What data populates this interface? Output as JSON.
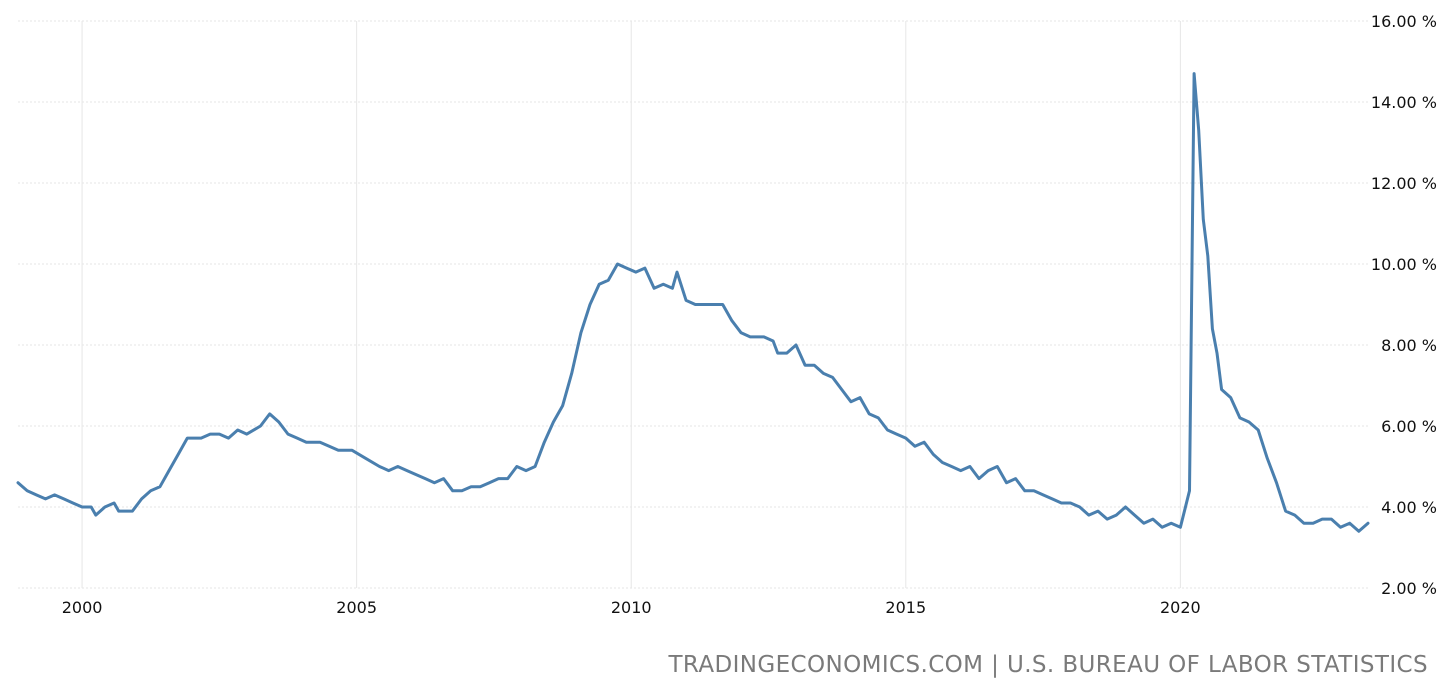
{
  "chart_data": {
    "type": "line",
    "title": "",
    "xlabel": "",
    "ylabel": "",
    "ylim": [
      2,
      16
    ],
    "xlim": [
      "1998-11",
      "2023-06"
    ],
    "grid": true,
    "legend": "none",
    "x_tick_labels": [
      "2000",
      "2005",
      "2010",
      "2015",
      "2020"
    ],
    "y_tick_labels": [
      "2.00 %",
      "4.00 %",
      "6.00 %",
      "8.00 %",
      "10.00 %",
      "12.00 %",
      "14.00 %",
      "16.00 %"
    ],
    "line_color": "#4a7fae",
    "series": [
      {
        "name": "",
        "points": [
          [
            "1998-11",
            4.6
          ],
          [
            "1999-01",
            4.4
          ],
          [
            "1999-03",
            4.3
          ],
          [
            "1999-05",
            4.2
          ],
          [
            "1999-07",
            4.3
          ],
          [
            "1999-09",
            4.2
          ],
          [
            "1999-11",
            4.1
          ],
          [
            "2000-01",
            4.0
          ],
          [
            "2000-03",
            4.0
          ],
          [
            "2000-04",
            3.8
          ],
          [
            "2000-06",
            4.0
          ],
          [
            "2000-08",
            4.1
          ],
          [
            "2000-09",
            3.9
          ],
          [
            "2000-12",
            3.9
          ],
          [
            "2001-02",
            4.2
          ],
          [
            "2001-04",
            4.4
          ],
          [
            "2001-06",
            4.5
          ],
          [
            "2001-08",
            4.9
          ],
          [
            "2001-10",
            5.3
          ],
          [
            "2001-12",
            5.7
          ],
          [
            "2002-03",
            5.7
          ],
          [
            "2002-05",
            5.8
          ],
          [
            "2002-07",
            5.8
          ],
          [
            "2002-09",
            5.7
          ],
          [
            "2002-11",
            5.9
          ],
          [
            "2003-01",
            5.8
          ],
          [
            "2003-04",
            6.0
          ],
          [
            "2003-06",
            6.3
          ],
          [
            "2003-08",
            6.1
          ],
          [
            "2003-10",
            5.8
          ],
          [
            "2003-12",
            5.7
          ],
          [
            "2004-02",
            5.6
          ],
          [
            "2004-05",
            5.6
          ],
          [
            "2004-07",
            5.5
          ],
          [
            "2004-09",
            5.4
          ],
          [
            "2004-12",
            5.4
          ],
          [
            "2005-03",
            5.2
          ],
          [
            "2005-06",
            5.0
          ],
          [
            "2005-08",
            4.9
          ],
          [
            "2005-10",
            5.0
          ],
          [
            "2005-12",
            4.9
          ],
          [
            "2006-02",
            4.8
          ],
          [
            "2006-04",
            4.7
          ],
          [
            "2006-06",
            4.6
          ],
          [
            "2006-08",
            4.7
          ],
          [
            "2006-10",
            4.4
          ],
          [
            "2006-12",
            4.4
          ],
          [
            "2007-02",
            4.5
          ],
          [
            "2007-04",
            4.5
          ],
          [
            "2007-06",
            4.6
          ],
          [
            "2007-08",
            4.7
          ],
          [
            "2007-10",
            4.7
          ],
          [
            "2007-12",
            5.0
          ],
          [
            "2008-02",
            4.9
          ],
          [
            "2008-04",
            5.0
          ],
          [
            "2008-06",
            5.6
          ],
          [
            "2008-08",
            6.1
          ],
          [
            "2008-10",
            6.5
          ],
          [
            "2008-12",
            7.3
          ],
          [
            "2009-02",
            8.3
          ],
          [
            "2009-04",
            9.0
          ],
          [
            "2009-06",
            9.5
          ],
          [
            "2009-08",
            9.6
          ],
          [
            "2009-10",
            10.0
          ],
          [
            "2009-12",
            9.9
          ],
          [
            "2010-02",
            9.8
          ],
          [
            "2010-04",
            9.9
          ],
          [
            "2010-06",
            9.4
          ],
          [
            "2010-08",
            9.5
          ],
          [
            "2010-10",
            9.4
          ],
          [
            "2010-11",
            9.8
          ],
          [
            "2011-01",
            9.1
          ],
          [
            "2011-03",
            9.0
          ],
          [
            "2011-05",
            9.0
          ],
          [
            "2011-07",
            9.0
          ],
          [
            "2011-09",
            9.0
          ],
          [
            "2011-11",
            8.6
          ],
          [
            "2012-01",
            8.3
          ],
          [
            "2012-03",
            8.2
          ],
          [
            "2012-06",
            8.2
          ],
          [
            "2012-08",
            8.1
          ],
          [
            "2012-09",
            7.8
          ],
          [
            "2012-11",
            7.8
          ],
          [
            "2013-01",
            8.0
          ],
          [
            "2013-03",
            7.5
          ],
          [
            "2013-05",
            7.5
          ],
          [
            "2013-07",
            7.3
          ],
          [
            "2013-09",
            7.2
          ],
          [
            "2013-11",
            6.9
          ],
          [
            "2014-01",
            6.6
          ],
          [
            "2014-03",
            6.7
          ],
          [
            "2014-05",
            6.3
          ],
          [
            "2014-07",
            6.2
          ],
          [
            "2014-09",
            5.9
          ],
          [
            "2014-11",
            5.8
          ],
          [
            "2015-01",
            5.7
          ],
          [
            "2015-03",
            5.5
          ],
          [
            "2015-05",
            5.6
          ],
          [
            "2015-07",
            5.3
          ],
          [
            "2015-09",
            5.1
          ],
          [
            "2015-11",
            5.0
          ],
          [
            "2016-01",
            4.9
          ],
          [
            "2016-03",
            5.0
          ],
          [
            "2016-05",
            4.7
          ],
          [
            "2016-07",
            4.9
          ],
          [
            "2016-09",
            5.0
          ],
          [
            "2016-11",
            4.6
          ],
          [
            "2017-01",
            4.7
          ],
          [
            "2017-03",
            4.4
          ],
          [
            "2017-05",
            4.4
          ],
          [
            "2017-07",
            4.3
          ],
          [
            "2017-09",
            4.2
          ],
          [
            "2017-11",
            4.1
          ],
          [
            "2018-01",
            4.1
          ],
          [
            "2018-03",
            4.0
          ],
          [
            "2018-05",
            3.8
          ],
          [
            "2018-07",
            3.9
          ],
          [
            "2018-09",
            3.7
          ],
          [
            "2018-11",
            3.8
          ],
          [
            "2019-01",
            4.0
          ],
          [
            "2019-03",
            3.8
          ],
          [
            "2019-05",
            3.6
          ],
          [
            "2019-07",
            3.7
          ],
          [
            "2019-09",
            3.5
          ],
          [
            "2019-11",
            3.6
          ],
          [
            "2020-01",
            3.5
          ],
          [
            "2020-03",
            4.4
          ],
          [
            "2020-04",
            14.7
          ],
          [
            "2020-05",
            13.3
          ],
          [
            "2020-06",
            11.1
          ],
          [
            "2020-07",
            10.2
          ],
          [
            "2020-08",
            8.4
          ],
          [
            "2020-09",
            7.8
          ],
          [
            "2020-10",
            6.9
          ],
          [
            "2020-12",
            6.7
          ],
          [
            "2021-02",
            6.2
          ],
          [
            "2021-04",
            6.1
          ],
          [
            "2021-06",
            5.9
          ],
          [
            "2021-08",
            5.2
          ],
          [
            "2021-10",
            4.6
          ],
          [
            "2021-12",
            3.9
          ],
          [
            "2022-02",
            3.8
          ],
          [
            "2022-04",
            3.6
          ],
          [
            "2022-06",
            3.6
          ],
          [
            "2022-08",
            3.7
          ],
          [
            "2022-10",
            3.7
          ],
          [
            "2022-12",
            3.5
          ],
          [
            "2023-02",
            3.6
          ],
          [
            "2023-04",
            3.4
          ],
          [
            "2023-06",
            3.6
          ]
        ]
      }
    ]
  },
  "source": "TRADINGECONOMICS.COM | U.S. BUREAU OF LABOR STATISTICS"
}
